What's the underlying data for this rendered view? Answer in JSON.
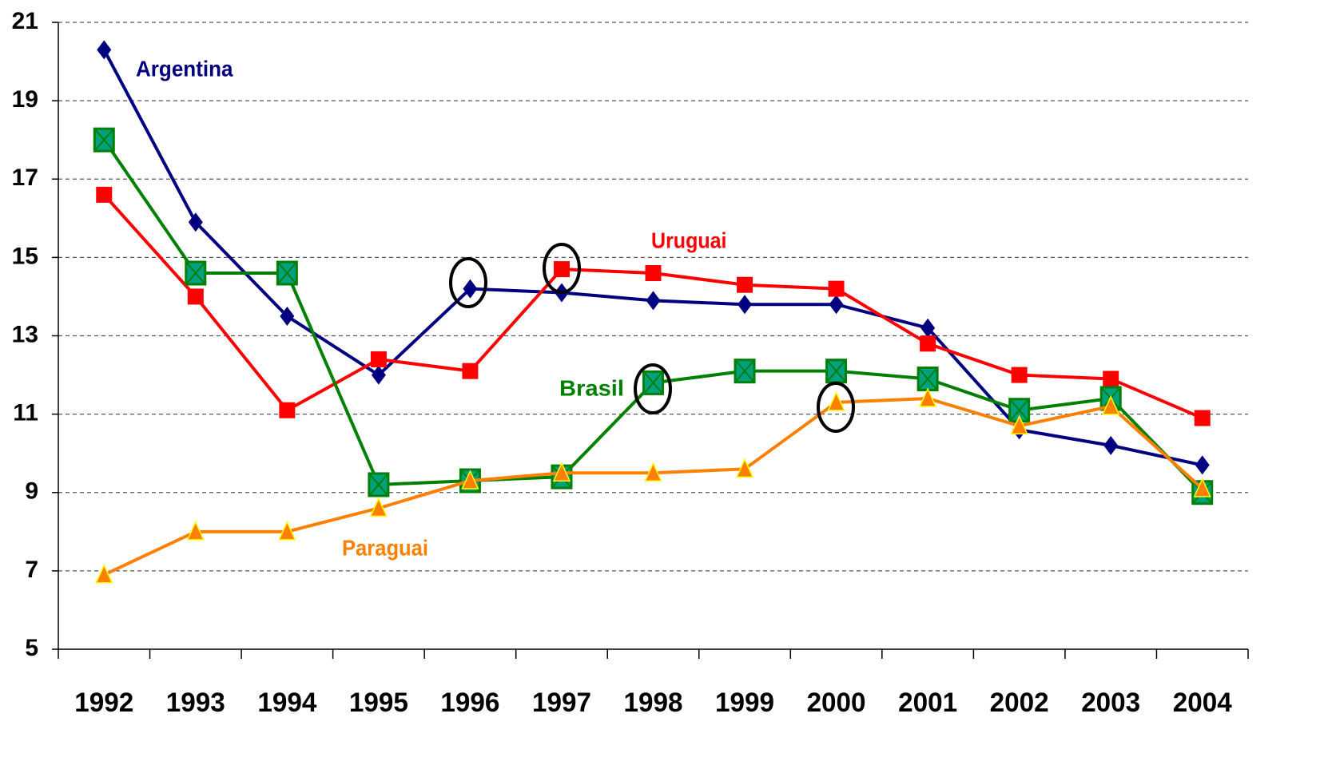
{
  "chart_data": {
    "type": "line",
    "categories": [
      "1992",
      "1993",
      "1994",
      "1995",
      "1996",
      "1997",
      "1998",
      "1999",
      "2000",
      "2001",
      "2002",
      "2003",
      "2004"
    ],
    "series": [
      {
        "name": "Argentina",
        "color": "#000080",
        "marker": "diamond",
        "marker_color": "#000080",
        "values": [
          20.3,
          15.9,
          13.5,
          12.0,
          14.2,
          14.1,
          13.9,
          13.8,
          13.8,
          13.2,
          10.6,
          10.2,
          9.7
        ]
      },
      {
        "name": "Uruguai",
        "color": "#ff0000",
        "marker": "square",
        "marker_color": "#ff0000",
        "values": [
          16.6,
          14.0,
          11.1,
          12.4,
          12.1,
          14.7,
          14.6,
          14.3,
          14.2,
          12.8,
          12.0,
          11.9,
          10.9
        ]
      },
      {
        "name": "Brasil",
        "color": "#008000",
        "marker": "x-square",
        "marker_color": "#00a080",
        "values": [
          18.0,
          14.6,
          14.6,
          9.2,
          9.3,
          9.4,
          11.8,
          12.1,
          12.1,
          11.9,
          11.1,
          11.4,
          9.0
        ]
      },
      {
        "name": "Paraguai",
        "color": "#ff8000",
        "marker": "triangle",
        "marker_color": "#ff8000",
        "values": [
          6.9,
          8.0,
          8.0,
          8.6,
          9.3,
          9.5,
          9.5,
          9.6,
          11.3,
          11.4,
          10.7,
          11.2,
          9.1
        ]
      }
    ],
    "ylim": [
      5,
      21
    ],
    "yticks": [
      5,
      7,
      9,
      11,
      13,
      15,
      17,
      19,
      21
    ],
    "grid": true
  }
}
